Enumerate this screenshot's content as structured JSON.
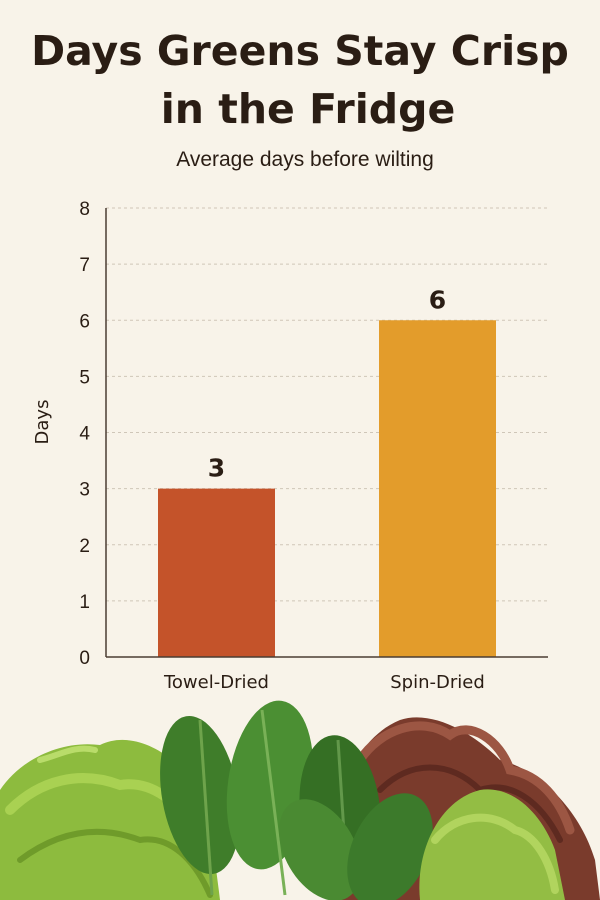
{
  "chart_data": {
    "type": "bar",
    "title": "Days Greens Stay Crisp in the Fridge",
    "title_lines": [
      "Days Greens Stay Crisp",
      "in the Fridge"
    ],
    "subtitle": "Average days before wilting",
    "ylabel": "Days",
    "xlabel": "",
    "ylim": [
      0,
      8
    ],
    "yticks": [
      0,
      1,
      2,
      3,
      4,
      5,
      6,
      7,
      8
    ],
    "grid": true,
    "categories": [
      "Towel-Dried",
      "Spin-Dried"
    ],
    "values": [
      3,
      6
    ],
    "colors": [
      "#c4532a",
      "#e39c2b"
    ]
  },
  "illustration": {
    "subject": "fresh-lettuce-and-spinach-icon"
  }
}
